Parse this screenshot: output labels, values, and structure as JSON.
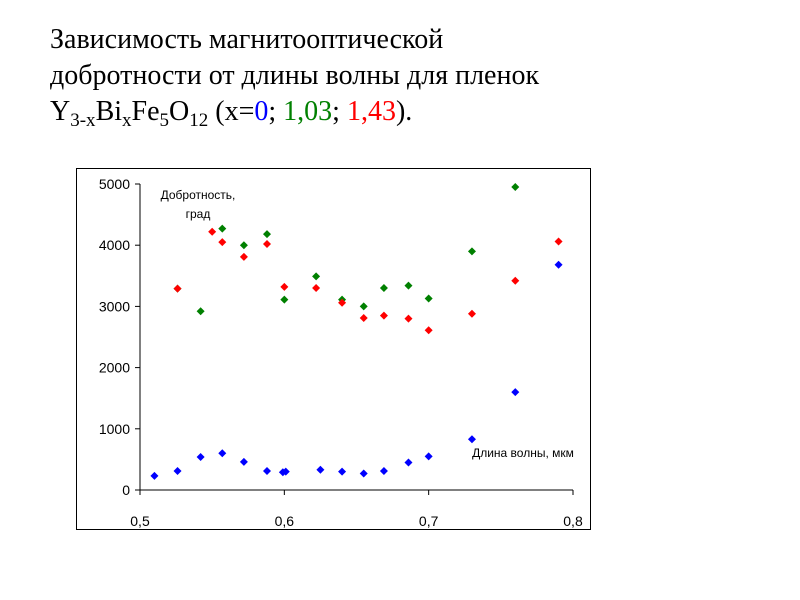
{
  "title": {
    "line1": "Зависимость магнитооптической",
    "line2": "добротности от длины волны для пленок",
    "formula": {
      "y": "Y",
      "y_sub": "3-x",
      "bi": "Bi",
      "bi_sub": "x",
      "fe": "Fe",
      "fe_sub": "5",
      "o": "O",
      "o_sub": "12",
      "open": " (x=",
      "sep1": "; ",
      "sep2": "; ",
      "close": ")."
    },
    "x_values": [
      {
        "text": "0",
        "color": "#0000ff"
      },
      {
        "text": "1,03",
        "color": "#008000"
      },
      {
        "text": "1,43",
        "color": "#ff0000"
      }
    ]
  },
  "chart_data": {
    "type": "scatter",
    "ylabel_line1": "Добротность,",
    "ylabel_line2": "град",
    "xlabel": "Длина волны, мкм",
    "xlim": [
      0.5,
      0.8
    ],
    "ylim": [
      0,
      5000
    ],
    "x_ticks": [
      0.5,
      0.6,
      0.7,
      0.8
    ],
    "x_tick_labels": [
      "0,5",
      "0,6",
      "0,7",
      "0,8"
    ],
    "y_ticks": [
      0,
      1000,
      2000,
      3000,
      4000,
      5000
    ],
    "y_tick_labels": [
      "0",
      "1000",
      "2000",
      "3000",
      "4000",
      "5000"
    ],
    "grid": false,
    "marker": "diamond",
    "series": [
      {
        "color": "#0000ff",
        "points": [
          [
            0.51,
            230
          ],
          [
            0.526,
            310
          ],
          [
            0.542,
            540
          ],
          [
            0.557,
            600
          ],
          [
            0.572,
            460
          ],
          [
            0.588,
            310
          ],
          [
            0.599,
            290
          ],
          [
            0.601,
            300
          ],
          [
            0.625,
            330
          ],
          [
            0.64,
            300
          ],
          [
            0.655,
            270
          ],
          [
            0.669,
            310
          ],
          [
            0.686,
            450
          ],
          [
            0.7,
            550
          ],
          [
            0.73,
            830
          ],
          [
            0.76,
            1600
          ],
          [
            0.79,
            3680
          ]
        ]
      },
      {
        "color": "#008000",
        "points": [
          [
            0.526,
            3290
          ],
          [
            0.542,
            2920
          ],
          [
            0.557,
            4270
          ],
          [
            0.572,
            4000
          ],
          [
            0.588,
            4180
          ],
          [
            0.6,
            3110
          ],
          [
            0.622,
            3490
          ],
          [
            0.64,
            3110
          ],
          [
            0.655,
            3000
          ],
          [
            0.669,
            3300
          ],
          [
            0.686,
            3340
          ],
          [
            0.7,
            3130
          ],
          [
            0.73,
            3900
          ],
          [
            0.76,
            4950
          ]
        ]
      },
      {
        "color": "#ff0000",
        "points": [
          [
            0.526,
            3290
          ],
          [
            0.55,
            4220
          ],
          [
            0.557,
            4050
          ],
          [
            0.572,
            3810
          ],
          [
            0.588,
            4020
          ],
          [
            0.6,
            3320
          ],
          [
            0.622,
            3300
          ],
          [
            0.64,
            3060
          ],
          [
            0.655,
            2810
          ],
          [
            0.669,
            2850
          ],
          [
            0.686,
            2800
          ],
          [
            0.7,
            2610
          ],
          [
            0.73,
            2880
          ],
          [
            0.76,
            3420
          ],
          [
            0.79,
            4060
          ]
        ]
      }
    ]
  }
}
